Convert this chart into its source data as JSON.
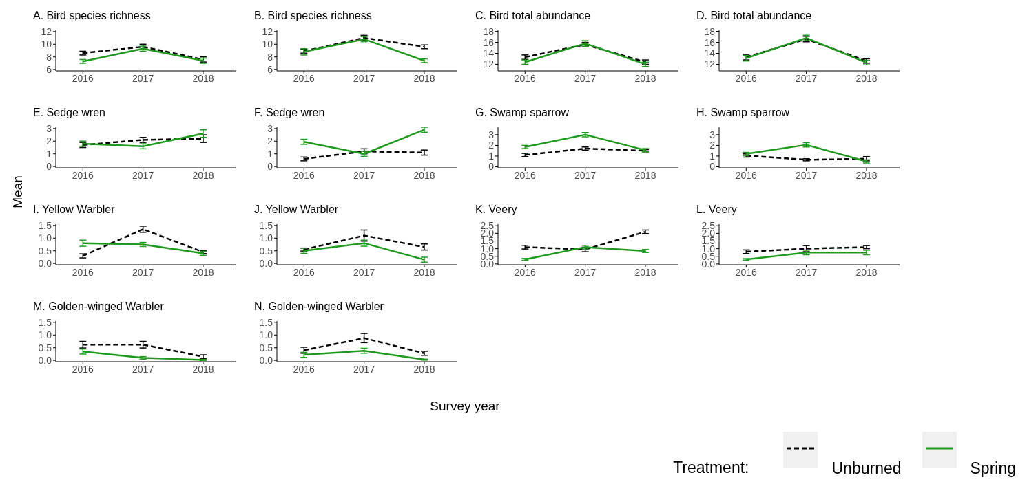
{
  "chart_data": [
    {
      "type": "line",
      "title": "A. Bird species richness",
      "categories": [
        "2016",
        "2017",
        "2018"
      ],
      "ylim": [
        5.8,
        12.2
      ],
      "yticks": [
        6,
        8,
        10,
        12
      ],
      "series": [
        {
          "color": "#000000",
          "line_style": "dashed",
          "values": [
            8.6,
            9.6,
            7.6
          ],
          "errors": [
            0.3,
            0.4,
            0.4
          ]
        },
        {
          "color": "#1f9a1f",
          "line_style": "solid",
          "values": [
            7.3,
            9.3,
            7.4
          ],
          "errors": [
            0.3,
            0.4,
            0.4
          ]
        }
      ]
    },
    {
      "type": "line",
      "title": "B. Bird species richness",
      "categories": [
        "2016",
        "2017",
        "2018"
      ],
      "ylim": [
        5.8,
        12.2
      ],
      "yticks": [
        6,
        8,
        10,
        12
      ],
      "series": [
        {
          "color": "#000000",
          "line_style": "dashed",
          "values": [
            8.9,
            11.0,
            9.6
          ],
          "errors": [
            0.3,
            0.4,
            0.3
          ]
        },
        {
          "color": "#1f9a1f",
          "line_style": "solid",
          "values": [
            8.8,
            10.8,
            7.4
          ],
          "errors": [
            0.5,
            0.4,
            0.3
          ]
        }
      ]
    },
    {
      "type": "line",
      "title": "C. Bird total abundance",
      "categories": [
        "2016",
        "2017",
        "2018"
      ],
      "ylim": [
        10.8,
        18.2
      ],
      "yticks": [
        12,
        14,
        16,
        18
      ],
      "series": [
        {
          "color": "#000000",
          "line_style": "dashed",
          "values": [
            13.3,
            15.6,
            12.4
          ],
          "errors": [
            0.4,
            0.4,
            0.4
          ]
        },
        {
          "color": "#1f9a1f",
          "line_style": "solid",
          "values": [
            12.4,
            15.8,
            12.0
          ],
          "errors": [
            0.4,
            0.5,
            0.4
          ]
        }
      ]
    },
    {
      "type": "line",
      "title": "D. Bird total abundance",
      "categories": [
        "2016",
        "2017",
        "2018"
      ],
      "ylim": [
        10.8,
        18.2
      ],
      "yticks": [
        12,
        14,
        16,
        18
      ],
      "series": [
        {
          "color": "#000000",
          "line_style": "dashed",
          "values": [
            13.3,
            16.6,
            12.6
          ],
          "errors": [
            0.5,
            0.5,
            0.4
          ]
        },
        {
          "color": "#1f9a1f",
          "line_style": "solid",
          "values": [
            13.1,
            16.8,
            12.3
          ],
          "errors": [
            0.5,
            0.5,
            0.4
          ]
        }
      ]
    },
    {
      "type": "line",
      "title": "E. Sedge wren",
      "ylabel": "Mean",
      "categories": [
        "2016",
        "2017",
        "2018"
      ],
      "ylim": [
        -0.1,
        3.1
      ],
      "yticks": [
        0,
        1,
        2,
        3
      ],
      "series": [
        {
          "color": "#000000",
          "line_style": "dashed",
          "values": [
            1.7,
            2.1,
            2.2
          ],
          "errors": [
            0.2,
            0.2,
            0.3
          ]
        },
        {
          "color": "#1f9a1f",
          "line_style": "solid",
          "values": [
            1.8,
            1.6,
            2.6
          ],
          "errors": [
            0.2,
            0.2,
            0.3
          ]
        }
      ]
    },
    {
      "type": "line",
      "title": "F. Sedge wren",
      "categories": [
        "2016",
        "2017",
        "2018"
      ],
      "ylim": [
        -0.1,
        3.1
      ],
      "yticks": [
        0,
        1,
        2,
        3
      ],
      "series": [
        {
          "color": "#000000",
          "line_style": "dashed",
          "values": [
            0.6,
            1.2,
            1.1
          ],
          "errors": [
            0.15,
            0.2,
            0.2
          ]
        },
        {
          "color": "#1f9a1f",
          "line_style": "solid",
          "values": [
            1.95,
            1.0,
            2.9
          ],
          "errors": [
            0.2,
            0.2,
            0.2
          ]
        }
      ]
    },
    {
      "type": "line",
      "title": "G. Swamp sparrow",
      "categories": [
        "2016",
        "2017",
        "2018"
      ],
      "ylim": [
        -0.1,
        3.7
      ],
      "yticks": [
        0,
        1,
        2,
        3
      ],
      "series": [
        {
          "color": "#000000",
          "line_style": "dashed",
          "values": [
            1.1,
            1.7,
            1.5
          ],
          "errors": [
            0.15,
            0.15,
            0.1
          ]
        },
        {
          "color": "#1f9a1f",
          "line_style": "solid",
          "values": [
            1.85,
            3.0,
            1.55
          ],
          "errors": [
            0.15,
            0.2,
            0.15
          ]
        }
      ]
    },
    {
      "type": "line",
      "title": "H. Swamp sparrow",
      "categories": [
        "2016",
        "2017",
        "2018"
      ],
      "ylim": [
        -0.1,
        3.7
      ],
      "yticks": [
        0,
        1,
        2,
        3
      ],
      "series": [
        {
          "color": "#000000",
          "line_style": "dashed",
          "values": [
            1.05,
            0.65,
            0.75
          ],
          "errors": [
            0.15,
            0.1,
            0.2
          ]
        },
        {
          "color": "#1f9a1f",
          "line_style": "solid",
          "values": [
            1.2,
            2.05,
            0.5
          ],
          "errors": [
            0.15,
            0.2,
            0.15
          ]
        }
      ]
    },
    {
      "type": "line",
      "title": "I. Yellow Warbler",
      "categories": [
        "2016",
        "2017",
        "2018"
      ],
      "ylim": [
        -0.05,
        1.55
      ],
      "yticks": [
        {
          "value": 0,
          "label": "0.0"
        },
        {
          "value": 0.5,
          "label": "0.5"
        },
        {
          "value": 1,
          "label": "1.0"
        },
        {
          "value": 1.5,
          "label": "1.5"
        }
      ],
      "series": [
        {
          "color": "#000000",
          "line_style": "dashed",
          "values": [
            0.3,
            1.35,
            0.45
          ],
          "errors": [
            0.08,
            0.12,
            0.06
          ]
        },
        {
          "color": "#1f9a1f",
          "line_style": "solid",
          "values": [
            0.8,
            0.75,
            0.4
          ],
          "errors": [
            0.12,
            0.08,
            0.08
          ]
        }
      ]
    },
    {
      "type": "line",
      "title": "J. Yellow Warbler",
      "categories": [
        "2016",
        "2017",
        "2018"
      ],
      "ylim": [
        -0.05,
        1.55
      ],
      "yticks": [
        {
          "value": 0,
          "label": "0.0"
        },
        {
          "value": 0.5,
          "label": "0.5"
        },
        {
          "value": 1,
          "label": "1.0"
        },
        {
          "value": 1.5,
          "label": "1.5"
        }
      ],
      "series": [
        {
          "color": "#000000",
          "line_style": "dashed",
          "values": [
            0.55,
            1.1,
            0.65
          ],
          "errors": [
            0.06,
            0.22,
            0.12
          ]
        },
        {
          "color": "#1f9a1f",
          "line_style": "solid",
          "values": [
            0.5,
            0.8,
            0.15
          ],
          "errors": [
            0.1,
            0.12,
            0.1
          ]
        }
      ]
    },
    {
      "type": "line",
      "title": "K. Veery",
      "categories": [
        "2016",
        "2017",
        "2018"
      ],
      "ylim": [
        -0.05,
        2.6
      ],
      "yticks": [
        {
          "value": 0,
          "label": "0.0"
        },
        {
          "value": 0.5,
          "label": "0.5"
        },
        {
          "value": 1,
          "label": "1.0"
        },
        {
          "value": 1.5,
          "label": "1.5"
        },
        {
          "value": 2,
          "label": "2.0"
        },
        {
          "value": 2.5,
          "label": "2.5"
        }
      ],
      "series": [
        {
          "color": "#000000",
          "line_style": "dashed",
          "values": [
            1.1,
            0.95,
            2.1
          ],
          "errors": [
            0.12,
            0.15,
            0.12
          ]
        },
        {
          "color": "#1f9a1f",
          "line_style": "solid",
          "values": [
            0.3,
            1.1,
            0.85
          ],
          "errors": [
            0.06,
            0.12,
            0.1
          ]
        }
      ]
    },
    {
      "type": "line",
      "title": "L. Veery",
      "categories": [
        "2016",
        "2017",
        "2018"
      ],
      "ylim": [
        -0.05,
        2.6
      ],
      "yticks": [
        {
          "value": 0,
          "label": "0.0"
        },
        {
          "value": 0.5,
          "label": "0.5"
        },
        {
          "value": 1,
          "label": "1.0"
        },
        {
          "value": 1.5,
          "label": "1.5"
        },
        {
          "value": 2,
          "label": "2.0"
        },
        {
          "value": 2.5,
          "label": "2.5"
        }
      ],
      "series": [
        {
          "color": "#000000",
          "line_style": "dashed",
          "values": [
            0.8,
            1.0,
            1.1
          ],
          "errors": [
            0.12,
            0.2,
            0.1
          ]
        },
        {
          "color": "#1f9a1f",
          "line_style": "solid",
          "values": [
            0.3,
            0.75,
            0.75
          ],
          "errors": [
            0.05,
            0.15,
            0.15
          ]
        }
      ]
    },
    {
      "type": "line",
      "title": "M. Golden-winged Warbler",
      "categories": [
        "2016",
        "2017",
        "2018"
      ],
      "ylim": [
        -0.05,
        1.55
      ],
      "yticks": [
        {
          "value": 0,
          "label": "0.0"
        },
        {
          "value": 0.5,
          "label": "0.5"
        },
        {
          "value": 1,
          "label": "1.0"
        },
        {
          "value": 1.5,
          "label": "1.5"
        }
      ],
      "series": [
        {
          "color": "#000000",
          "line_style": "dashed",
          "values": [
            0.62,
            0.62,
            0.15
          ],
          "errors": [
            0.13,
            0.13,
            0.07
          ]
        },
        {
          "color": "#1f9a1f",
          "line_style": "solid",
          "values": [
            0.35,
            0.1,
            0.02
          ],
          "errors": [
            0.1,
            0.05,
            0.02
          ]
        }
      ]
    },
    {
      "type": "line",
      "title": "N. Golden-winged Warbler",
      "xlabel": "Survey year",
      "legend": "bottom right",
      "legend_title": "Treatment:",
      "categories": [
        "2016",
        "2017",
        "2018"
      ],
      "ylim": [
        -0.05,
        1.55
      ],
      "yticks": [
        {
          "value": 0,
          "label": "0.0"
        },
        {
          "value": 0.5,
          "label": "0.5"
        },
        {
          "value": 1,
          "label": "1.0"
        },
        {
          "value": 1.5,
          "label": "1.5"
        }
      ],
      "series": [
        {
          "name": "Unburned",
          "color": "#000000",
          "line_style": "dashed",
          "values": [
            0.4,
            0.88,
            0.28
          ],
          "errors": [
            0.12,
            0.18,
            0.08
          ]
        },
        {
          "name": "Spring",
          "color": "#1f9a1f",
          "line_style": "solid",
          "values": [
            0.22,
            0.38,
            0.03
          ],
          "errors": [
            0.1,
            0.1,
            0.02
          ]
        }
      ]
    }
  ]
}
